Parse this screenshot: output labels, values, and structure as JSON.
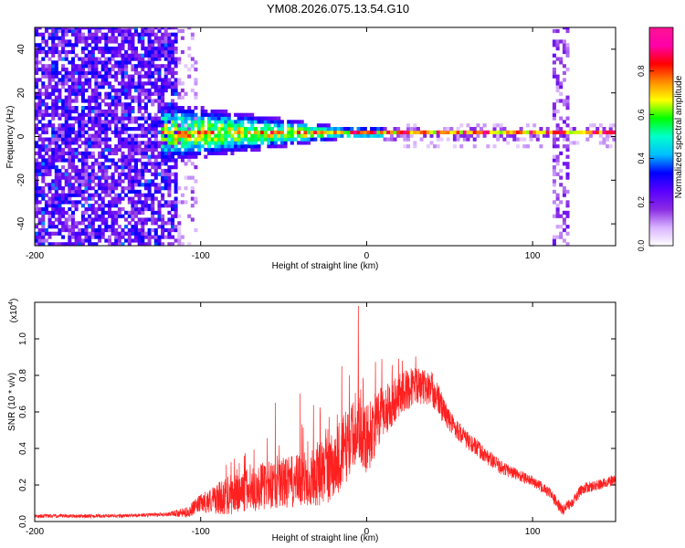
{
  "title": "YM08.2026.075.13.54.G10",
  "chart_data": [
    {
      "type": "heatmap",
      "xlabel": "Height of straight line (km)",
      "ylabel": "Frequency (Hz)",
      "xlim": [
        -200,
        150
      ],
      "ylim": [
        -50,
        50
      ],
      "xticks": [
        -200,
        -100,
        0,
        100
      ],
      "yticks": [
        -40,
        -20,
        0,
        20,
        40
      ],
      "colorbar": {
        "label": "Normalized spectral amplitude",
        "range": [
          0,
          1
        ],
        "ticks": [
          "0.0",
          "0.2",
          "0.4",
          "0.6",
          "0.8"
        ],
        "colormap": [
          "#ffffff",
          "#d9b3ff",
          "#8a2be2",
          "#5a00ff",
          "#0000ff",
          "#00bfff",
          "#00ffcc",
          "#00ff00",
          "#ffff00",
          "#ff8c00",
          "#ff0000",
          "#ff00aa",
          "#ff1493"
        ]
      },
      "features": {
        "noise_region_x": [
          -200,
          -115
        ],
        "plasma_cloud_x": [
          -125,
          0
        ],
        "carrier_line_freq": 1,
        "carrier_line_x": [
          -10,
          150
        ],
        "vertical_stripe_x": [
          112,
          120
        ]
      }
    },
    {
      "type": "line",
      "xlabel": "Height of straight line (km)",
      "ylabel": "SNR (10 * v/v)",
      "scale_label": "(x10",
      "scale_exp": "4",
      "xlim": [
        -200,
        150
      ],
      "ylim": [
        0,
        1.2
      ],
      "xticks": [
        -200,
        -100,
        0,
        100
      ],
      "yticks": [
        "0.0",
        "0.2",
        "0.4",
        "0.6",
        "0.8",
        "1.0"
      ],
      "color": "#ff2020",
      "series": [
        {
          "x": [
            -200,
            -150,
            -120,
            -108,
            -100,
            -80,
            -60,
            -40,
            -20,
            -10,
            -5,
            0,
            10,
            20,
            30,
            40,
            50,
            60,
            80,
            100,
            110,
            118,
            125,
            130,
            140,
            150
          ],
          "y": [
            0.03,
            0.03,
            0.04,
            0.05,
            0.1,
            0.15,
            0.2,
            0.22,
            0.3,
            0.45,
            0.5,
            0.45,
            0.6,
            0.7,
            0.75,
            0.72,
            0.55,
            0.45,
            0.3,
            0.22,
            0.16,
            0.06,
            0.12,
            0.18,
            0.2,
            0.23
          ],
          "noise": [
            0.01,
            0.01,
            0.01,
            0.03,
            0.05,
            0.12,
            0.13,
            0.15,
            0.2,
            0.2,
            0.15,
            0.2,
            0.15,
            0.12,
            0.1,
            0.1,
            0.06,
            0.05,
            0.04,
            0.03,
            0.03,
            0.03,
            0.03,
            0.03,
            0.03,
            0.03
          ]
        }
      ],
      "spikes": [
        {
          "x": -5,
          "y": 1.18
        },
        {
          "x": -15,
          "y": 0.85
        },
        {
          "x": -40,
          "y": 0.7
        },
        {
          "x": -55,
          "y": 0.65
        }
      ]
    }
  ]
}
